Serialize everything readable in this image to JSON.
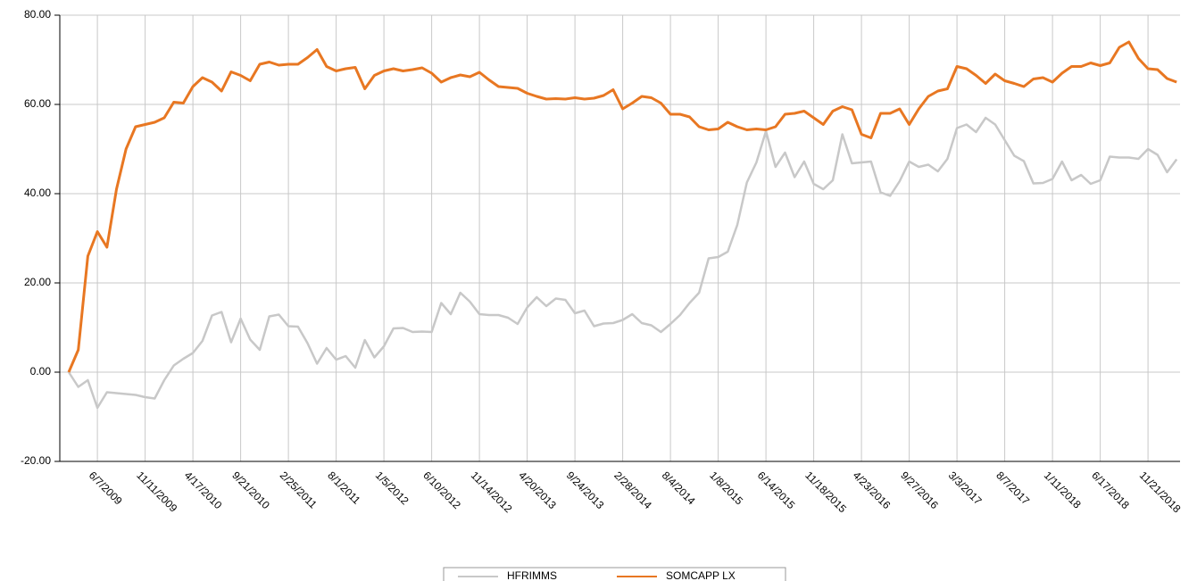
{
  "chart_data": {
    "type": "line",
    "categories": [
      null,
      null,
      null,
      "6/7/2009",
      null,
      null,
      null,
      null,
      "11/11/2009",
      null,
      null,
      null,
      null,
      "4/17/2010",
      null,
      null,
      null,
      null,
      "9/21/2010",
      null,
      null,
      null,
      null,
      "2/25/2011",
      null,
      null,
      null,
      null,
      "8/1/2011",
      null,
      null,
      null,
      null,
      "1/5/2012",
      null,
      null,
      null,
      null,
      "6/10/2012",
      null,
      null,
      null,
      null,
      "11/14/2012",
      null,
      null,
      null,
      null,
      "4/20/2013",
      null,
      null,
      null,
      null,
      "9/24/2013",
      null,
      null,
      null,
      null,
      "2/28/2014",
      null,
      null,
      null,
      null,
      "8/4/2014",
      null,
      null,
      null,
      null,
      "1/8/2015",
      null,
      null,
      null,
      null,
      "6/14/2015",
      null,
      null,
      null,
      null,
      "11/18/2015",
      null,
      null,
      null,
      null,
      "4/23/2016",
      null,
      null,
      null,
      null,
      "9/27/2016",
      null,
      null,
      null,
      null,
      "3/3/2017",
      null,
      null,
      null,
      null,
      "8/7/2017",
      null,
      null,
      null,
      null,
      "1/11/2018",
      null,
      null,
      null,
      null,
      "6/17/2018",
      null,
      null,
      null,
      null,
      "11/21/2018",
      null,
      null,
      null
    ],
    "series": [
      {
        "name": "HFRIMMS",
        "color": "#c8c8c8",
        "values": [
          0,
          -3.3,
          -1.8,
          -8,
          -4.5,
          -4.7,
          -4.9,
          -5.1,
          -5.6,
          -5.9,
          -1.8,
          1.5,
          3,
          4.3,
          7,
          12.7,
          13.5,
          6.7,
          12,
          7.3,
          5,
          12.5,
          12.9,
          10.3,
          10.2,
          6.5,
          1.9,
          5.4,
          2.8,
          3.6,
          1,
          7.2,
          3.3,
          5.8,
          9.8,
          9.9,
          9,
          9.1,
          9,
          15.5,
          13,
          17.8,
          15.8,
          13,
          12.8,
          12.8,
          12.2,
          10.8,
          14.5,
          16.8,
          14.8,
          16.5,
          16.2,
          13.2,
          13.8,
          10.3,
          10.9,
          11,
          11.7,
          13,
          11,
          10.5,
          9,
          10.8,
          12.8,
          15.5,
          17.8,
          25.5,
          25.8,
          27,
          33,
          42.5,
          47,
          54,
          46,
          49.2,
          43.7,
          47.2,
          42.2,
          41,
          43,
          53.3,
          46.8,
          47,
          47.2,
          40.3,
          39.5,
          42.8,
          47.2,
          46,
          46.5,
          45,
          47.8,
          54.7,
          55.5,
          53.8,
          57,
          55.5,
          52,
          48.5,
          47.3,
          42.3,
          42.4,
          43.3,
          47.2,
          43,
          44.2,
          42.2,
          43,
          48.3,
          48.1,
          48.1,
          47.8,
          50,
          48.7,
          44.8,
          47.7
        ]
      },
      {
        "name": "SOMCAPP LX",
        "color": "#e87722",
        "values": [
          0,
          5,
          26,
          31.5,
          28,
          41,
          50,
          55,
          55.5,
          56,
          57,
          60.5,
          60.3,
          64,
          66,
          65,
          63,
          67.3,
          66.5,
          65.3,
          69,
          69.5,
          68.8,
          69,
          69,
          70.5,
          72.3,
          68.5,
          67.5,
          68,
          68.3,
          63.5,
          66.5,
          67.5,
          68,
          67.5,
          67.8,
          68.2,
          67,
          65,
          66,
          66.6,
          66.2,
          67.2,
          65.5,
          64,
          63.8,
          63.6,
          62.5,
          61.8,
          61.2,
          61.3,
          61.2,
          61.5,
          61.2,
          61.4,
          62,
          63.3,
          59,
          60.3,
          61.8,
          61.5,
          60.3,
          57.8,
          57.8,
          57.2,
          55,
          54.3,
          54.5,
          56,
          55,
          54.3,
          54.5,
          54.3,
          55,
          57.8,
          58,
          58.5,
          57,
          55.5,
          58.5,
          59.5,
          58.8,
          53.3,
          52.5,
          58,
          58,
          59,
          55.5,
          59,
          61.8,
          63,
          63.5,
          68.5,
          68,
          66.5,
          64.7,
          66.8,
          65.3,
          64.7,
          64,
          65.7,
          66,
          65,
          67,
          68.5,
          68.5,
          69.3,
          68.7,
          69.3,
          72.8,
          74,
          70.3,
          68,
          67.8,
          65.8,
          65
        ]
      }
    ],
    "ylim": [
      -20,
      80
    ],
    "yticks": [
      {
        "value": -20,
        "label": "-20.00"
      },
      {
        "value": 0,
        "label": "0.00"
      },
      {
        "value": 20,
        "label": "20.00"
      },
      {
        "value": 40,
        "label": "40.00"
      },
      {
        "value": 60,
        "label": "60.00"
      },
      {
        "value": 80,
        "label": "80.00"
      }
    ],
    "grid": true,
    "legend": "bottom"
  }
}
